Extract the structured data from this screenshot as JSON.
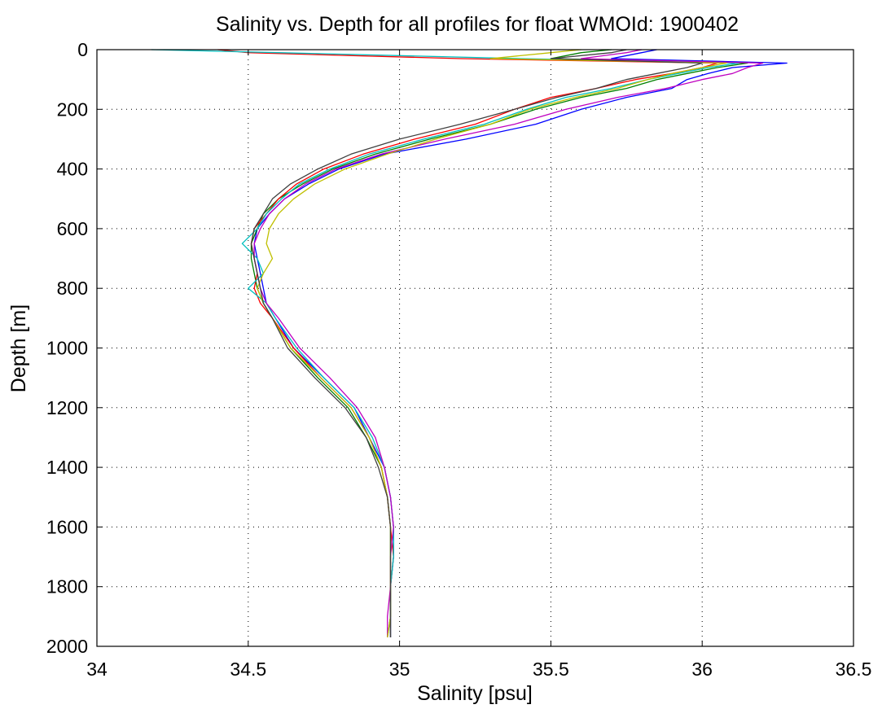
{
  "chart_data": {
    "type": "line",
    "title": "Salinity vs. Depth for all profiles for float WMOId: 1900402",
    "xlabel": "Salinity [psu]",
    "ylabel": "Depth [m]",
    "xlim": [
      34,
      36.5
    ],
    "ylim": [
      0,
      2000
    ],
    "y_reversed": true,
    "grid": "dotted",
    "xticks": [
      34,
      34.5,
      35,
      35.5,
      36,
      36.5
    ],
    "xtick_labels": [
      "34",
      "34.5",
      "35",
      "35.5",
      "36",
      "36.5"
    ],
    "yticks": [
      0,
      200,
      400,
      600,
      800,
      1000,
      1200,
      1400,
      1600,
      1800,
      2000
    ],
    "ytick_labels": [
      "0",
      "200",
      "400",
      "600",
      "800",
      "1000",
      "1200",
      "1400",
      "1600",
      "1800",
      "2000"
    ],
    "series_colors": [
      "#0000ff",
      "#008000",
      "#ff0000",
      "#00bfbf",
      "#bf00bf",
      "#bfbf00",
      "#404040"
    ],
    "profile_depths": [
      0,
      10,
      30,
      45,
      60,
      80,
      100,
      130,
      160,
      200,
      250,
      300,
      350,
      400,
      450,
      500,
      550,
      600,
      650,
      700,
      750,
      800,
      850,
      900,
      1000,
      1100,
      1200,
      1300,
      1400,
      1500,
      1600,
      1700,
      1800,
      1900,
      1970
    ],
    "series": [
      {
        "values": [
          35.85,
          35.8,
          35.7,
          36.28,
          36.1,
          36.02,
          35.95,
          35.9,
          35.75,
          35.6,
          35.45,
          35.22,
          34.95,
          34.8,
          34.7,
          34.62,
          34.57,
          34.53,
          34.52,
          34.53,
          34.54,
          34.55,
          34.56,
          34.59,
          34.65,
          34.75,
          34.85,
          34.9,
          34.95,
          34.97,
          34.98,
          34.98,
          34.97,
          34.97,
          34.97
        ]
      },
      {
        "values": [
          35.7,
          35.6,
          35.5,
          36.15,
          36.05,
          35.95,
          35.85,
          35.75,
          35.6,
          35.45,
          35.3,
          35.1,
          34.92,
          34.78,
          34.68,
          34.6,
          34.55,
          34.53,
          34.51,
          34.51,
          34.52,
          34.53,
          34.55,
          34.58,
          34.64,
          34.73,
          34.83,
          34.89,
          34.94,
          34.96,
          34.97,
          34.97,
          34.97,
          34.97,
          34.96
        ]
      },
      {
        "values": [
          34.4,
          34.5,
          35.2,
          36.05,
          36.0,
          35.9,
          35.78,
          35.65,
          35.5,
          35.38,
          35.25,
          35.05,
          34.88,
          34.75,
          34.66,
          34.6,
          34.56,
          34.52,
          34.51,
          34.52,
          34.53,
          34.52,
          34.54,
          34.58,
          34.65,
          34.74,
          34.84,
          34.9,
          34.94,
          34.96,
          34.97,
          34.98,
          34.97,
          34.97,
          34.97
        ]
      },
      {
        "values": [
          34.18,
          34.6,
          35.4,
          36.12,
          36.02,
          35.92,
          35.82,
          35.7,
          35.55,
          35.42,
          35.28,
          35.08,
          34.9,
          34.77,
          34.67,
          34.61,
          34.56,
          34.53,
          34.48,
          34.53,
          34.55,
          34.5,
          34.56,
          34.59,
          34.66,
          34.75,
          34.85,
          34.91,
          34.95,
          34.97,
          34.98,
          34.98,
          34.97,
          34.97,
          34.97
        ]
      },
      {
        "values": [
          35.8,
          35.75,
          35.6,
          36.2,
          36.15,
          36.1,
          36.0,
          35.88,
          35.72,
          35.55,
          35.38,
          35.15,
          34.94,
          34.79,
          34.69,
          34.62,
          34.57,
          34.54,
          34.52,
          34.52,
          34.53,
          34.54,
          34.56,
          34.6,
          34.67,
          34.77,
          34.86,
          34.92,
          34.95,
          34.97,
          34.98,
          34.97,
          34.97,
          34.96,
          34.96
        ]
      },
      {
        "values": [
          35.6,
          35.5,
          35.3,
          36.08,
          36.0,
          35.9,
          35.82,
          35.72,
          35.58,
          35.43,
          35.3,
          35.12,
          34.96,
          34.82,
          34.72,
          34.65,
          34.6,
          34.57,
          34.56,
          34.58,
          34.55,
          34.53,
          34.55,
          34.58,
          34.64,
          34.74,
          34.84,
          34.9,
          34.94,
          34.96,
          34.97,
          34.97,
          34.97,
          34.97,
          34.96
        ]
      },
      {
        "values": [
          35.75,
          35.7,
          35.5,
          36.0,
          35.95,
          35.85,
          35.75,
          35.65,
          35.52,
          35.38,
          35.2,
          35.0,
          34.84,
          34.73,
          34.64,
          34.58,
          34.55,
          34.52,
          34.51,
          34.52,
          34.53,
          34.54,
          34.55,
          34.58,
          34.63,
          34.72,
          34.82,
          34.89,
          34.93,
          34.96,
          34.97,
          34.97,
          34.97,
          34.97,
          34.97
        ]
      }
    ]
  }
}
